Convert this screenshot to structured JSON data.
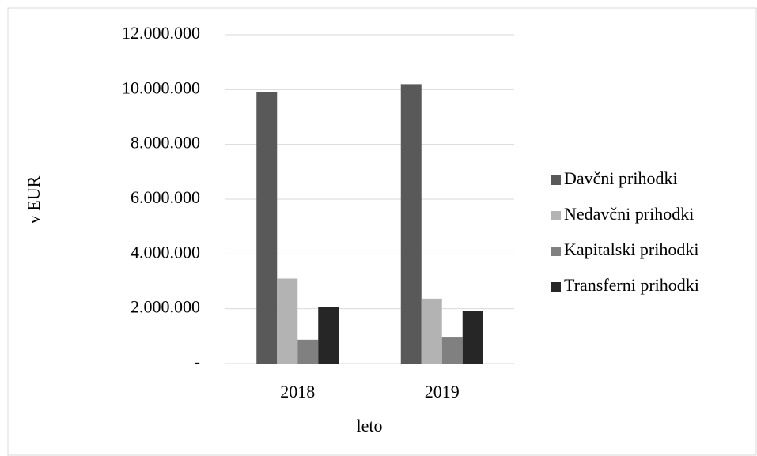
{
  "chart_data": {
    "type": "bar",
    "y_label": "v EUR",
    "x_label": "leto",
    "categories": [
      "2018",
      "2019"
    ],
    "series": [
      {
        "name": "Davčni prihodki",
        "color": "#595959",
        "values": [
          9900000,
          10200000
        ]
      },
      {
        "name": "Nedavčni prihodki",
        "color": "#b3b3b3",
        "values": [
          3100000,
          2370000
        ]
      },
      {
        "name": "Kapitalski prihodki",
        "color": "#808080",
        "values": [
          870000,
          950000
        ]
      },
      {
        "name": "Transferni prihodki",
        "color": "#262626",
        "values": [
          2060000,
          1930000
        ]
      }
    ],
    "ylim": [
      0,
      12000000
    ],
    "yticks": [
      {
        "value": 0,
        "label": "-"
      },
      {
        "value": 2000000,
        "label": "2.000.000"
      },
      {
        "value": 4000000,
        "label": "4.000.000"
      },
      {
        "value": 6000000,
        "label": "6.000.000"
      },
      {
        "value": 8000000,
        "label": "8.000.000"
      },
      {
        "value": 10000000,
        "label": "10.000.000"
      },
      {
        "value": 12000000,
        "label": "12.000.000"
      }
    ],
    "grid": true,
    "legend": "right"
  }
}
